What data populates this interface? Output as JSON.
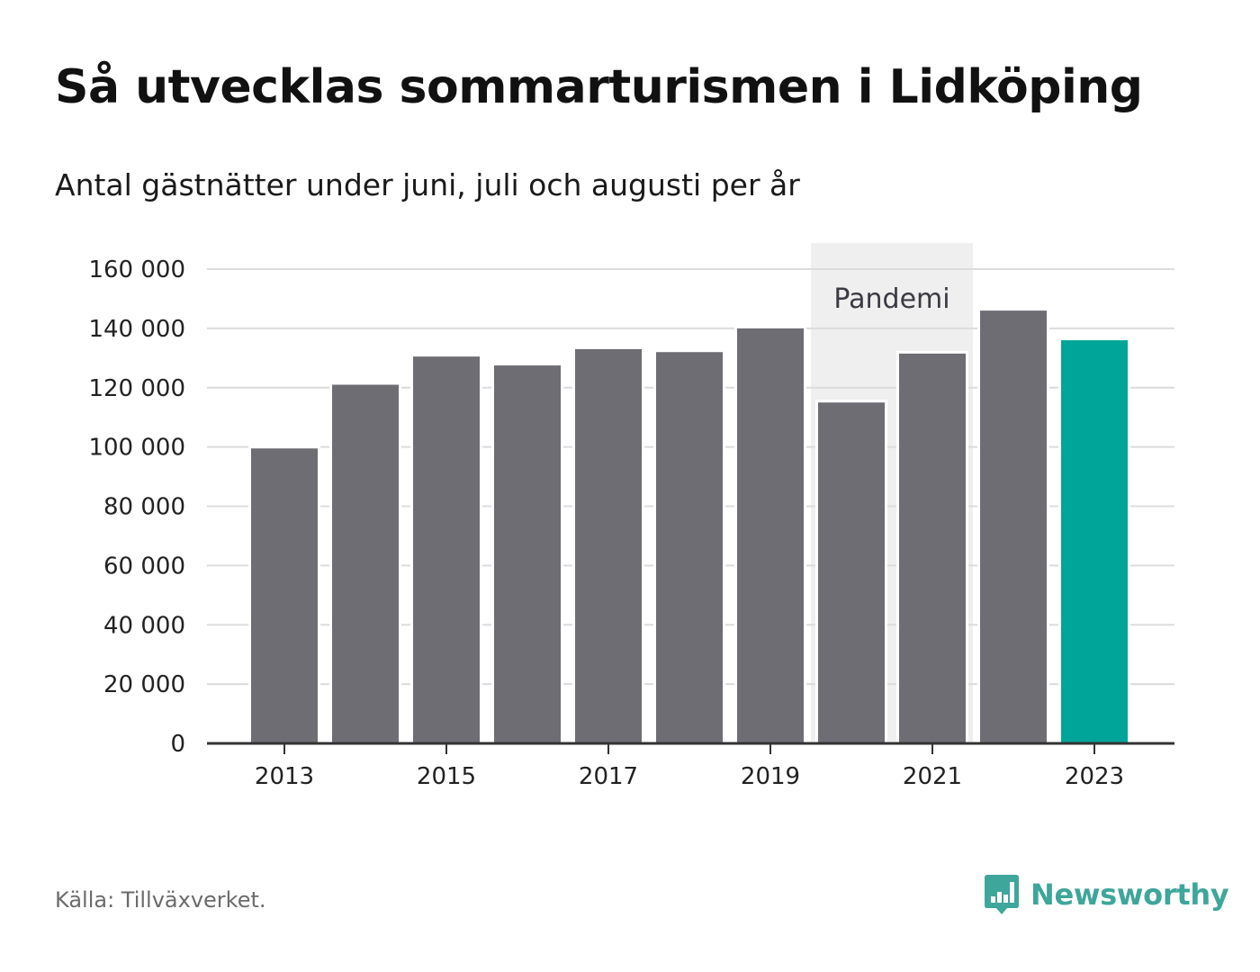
{
  "header": {
    "title": "Så utvecklas sommarturismen i Lidköping",
    "subtitle": "Antal gästnätter under juni, juli och augusti per år"
  },
  "footer": {
    "source": "Källa: Tillväxverket.",
    "brand_name": "Newsworthy",
    "brand_icon": "bar-chart-bubble-icon"
  },
  "colors": {
    "bar": "#6e6d74",
    "highlight": "#00a59a",
    "annotation_band": "#efefef",
    "grid": "#dcdcdc",
    "axis": "#333333",
    "brand": "#3ea69a"
  },
  "chart_data": {
    "type": "bar",
    "title": "Så utvecklas sommarturismen i Lidköping",
    "subtitle": "Antal gästnätter under juni, juli och augusti per år",
    "xlabel": "",
    "ylabel": "",
    "categories": [
      "2013",
      "2014",
      "2015",
      "2016",
      "2017",
      "2018",
      "2019",
      "2020",
      "2021",
      "2022",
      "2023"
    ],
    "values": [
      99500,
      121000,
      130500,
      127500,
      133000,
      132000,
      140000,
      115000,
      131500,
      146000,
      136000
    ],
    "highlight_category": "2023",
    "ylim": [
      0,
      160000
    ],
    "yticks": [
      0,
      20000,
      40000,
      60000,
      80000,
      100000,
      120000,
      140000,
      160000
    ],
    "ytick_labels": [
      "0",
      "20 000",
      "40 000",
      "60 000",
      "80 000",
      "100 000",
      "120 000",
      "140 000",
      "160 000"
    ],
    "xtick_labels": [
      "2013",
      "2015",
      "2017",
      "2019",
      "2021",
      "2023"
    ],
    "grid": true,
    "annotations": [
      {
        "label": "Pandemi",
        "from": "2020",
        "to": "2021"
      }
    ]
  }
}
